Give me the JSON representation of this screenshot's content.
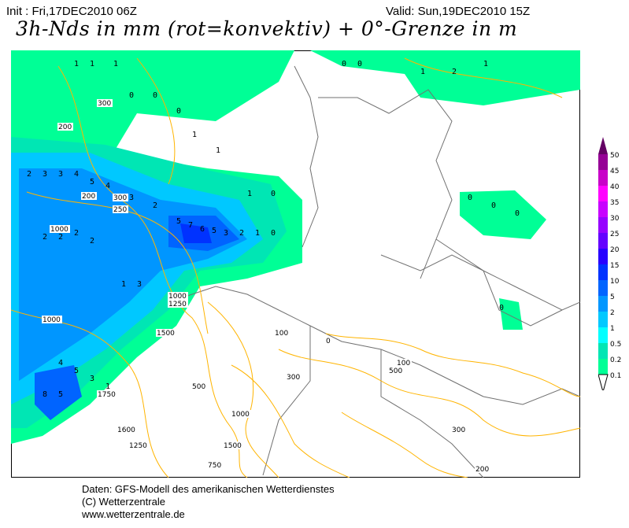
{
  "header": {
    "init": "Init : Fri,17DEC2010 06Z",
    "valid": "Valid: Sun,19DEC2010 15Z",
    "title": "3h-Nds in mm (rot=konvektiv) + 0°-Grenze in m"
  },
  "legend": {
    "labels": [
      "50",
      "45",
      "40",
      "35",
      "30",
      "25",
      "20",
      "15",
      "10",
      "5",
      "2",
      "1",
      "0.5",
      "0.2",
      "0.1"
    ],
    "colors": [
      "#640064",
      "#960096",
      "#c800c8",
      "#ff00ff",
      "#c800ff",
      "#9600ff",
      "#6400ff",
      "#2800ff",
      "#0032ff",
      "#0064ff",
      "#0096ff",
      "#00c8ff",
      "#00ffff",
      "#00e6b4",
      "#00ff96"
    ]
  },
  "map": {
    "contour_labels": [
      "300",
      "200",
      "1000",
      "250",
      "300",
      "200",
      "1000",
      "1250",
      "1500",
      "1750",
      "1600",
      "1250",
      "1500",
      "1000",
      "500",
      "300",
      "100",
      "0",
      "1000",
      "750",
      "500",
      "100",
      "200",
      "300"
    ],
    "precip_labels": [
      "0",
      "1",
      "2",
      "3",
      "4",
      "5",
      "6",
      "7",
      "8"
    ],
    "contour_color": "#ffb400",
    "border_color": "#707070"
  },
  "footer": {
    "line1": "Daten: GFS-Modell des amerikanischen Wetterdienstes",
    "line2": "(C) Wetterzentrale",
    "line3": "www.wetterzentrale.de"
  }
}
